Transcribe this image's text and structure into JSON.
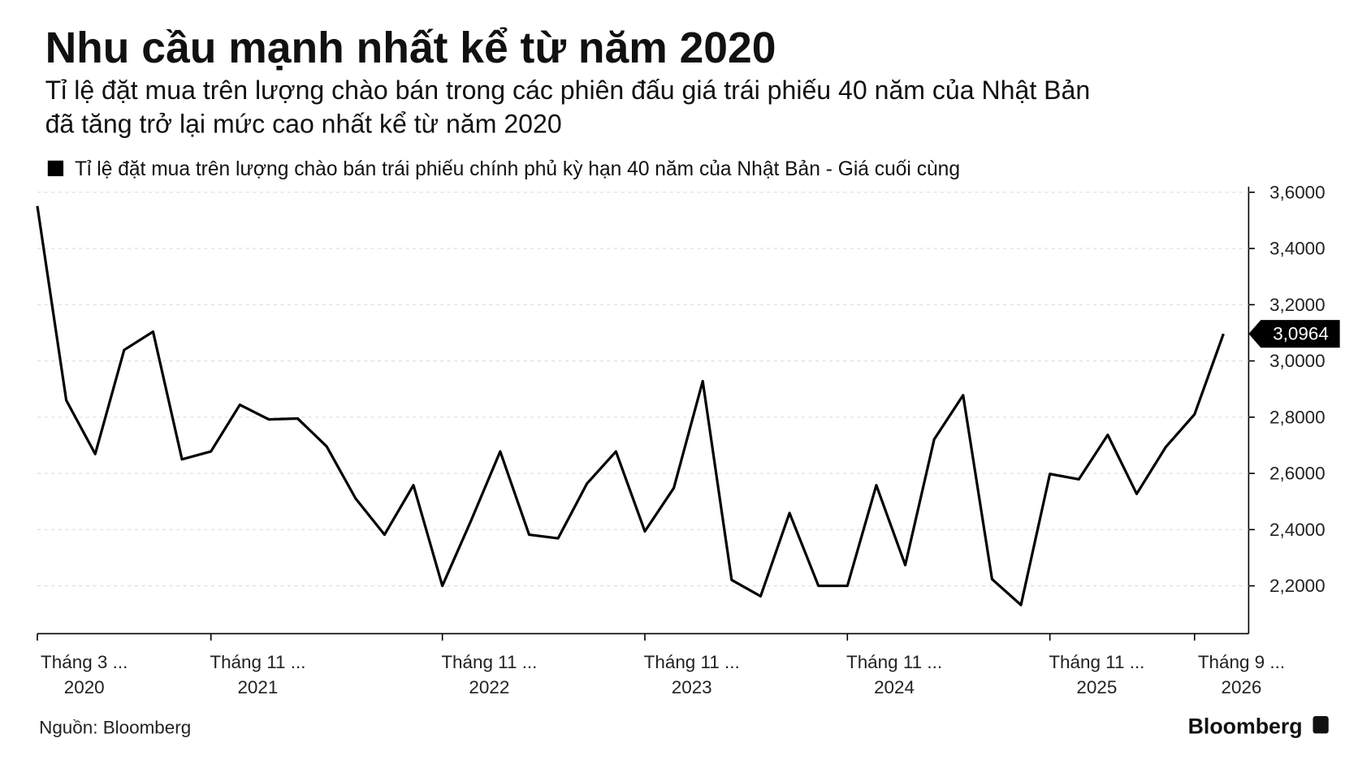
{
  "chart_data": {
    "type": "line",
    "title": "Nhu cầu mạnh nhất kể từ năm 2020",
    "subtitle": [
      "Tỉ lệ đặt mua trên lượng chào bán trong các phiên đấu giá trái phiếu 40 năm của Nhật Bản",
      "đã tăng trở lại mức cao nhất kể từ năm 2020"
    ],
    "source": "Nguồn: Bloomberg",
    "brand": "Bloomberg",
    "categories": [
      [
        "Tháng 3 ...",
        "2020"
      ],
      null,
      null,
      null,
      null,
      null,
      [
        "Tháng 11 ...",
        "2021"
      ],
      null,
      null,
      null,
      null,
      null,
      null,
      null,
      [
        "Tháng 11 ...",
        "2022"
      ],
      null,
      null,
      null,
      null,
      null,
      null,
      [
        "Tháng 11 ...",
        "2023"
      ],
      null,
      null,
      null,
      null,
      null,
      null,
      [
        "Tháng 11 ...",
        "2024"
      ],
      null,
      null,
      null,
      null,
      null,
      null,
      [
        "Tháng 11 ...",
        "2025"
      ],
      null,
      null,
      null,
      null,
      [
        "Tháng 9 ...",
        "2026"
      ],
      null
    ],
    "series": [
      {
        "name": "Tỉ lệ đặt mua trên lượng chào bán trái phiếu chính phủ kỳ hạn 40 năm của Nhật Bản - Giá cuối cùng",
        "color": "#000000",
        "values": [
          3.551,
          2.86,
          2.669,
          3.039,
          3.104,
          2.65,
          2.678,
          2.844,
          2.792,
          2.795,
          2.696,
          2.511,
          2.382,
          2.558,
          2.2,
          2.434,
          2.678,
          2.382,
          2.369,
          2.564,
          2.678,
          2.394,
          2.548,
          2.928,
          2.221,
          2.163,
          2.459,
          2.2,
          2.2,
          2.558,
          2.274,
          2.721,
          2.878,
          2.224,
          2.132,
          2.598,
          2.579,
          2.737,
          2.527,
          2.693,
          2.81,
          3.0964
        ],
        "value_labels": [
          null,
          null,
          null,
          null,
          null,
          null,
          null,
          null,
          null,
          null,
          null,
          null,
          null,
          null,
          null,
          null,
          null,
          null,
          null,
          null,
          null,
          null,
          null,
          null,
          null,
          null,
          null,
          null,
          null,
          null,
          null,
          null,
          null,
          null,
          null,
          null,
          null,
          null,
          null,
          null,
          null,
          "3,0964"
        ]
      }
    ],
    "ylim": [
      2.03,
      3.62
    ],
    "yticks": [
      {
        "value": 2.2,
        "label": "2,2000"
      },
      {
        "value": 2.4,
        "label": "2,4000"
      },
      {
        "value": 2.6,
        "label": "2,6000"
      },
      {
        "value": 2.8,
        "label": "2,8000"
      },
      {
        "value": 3.0,
        "label": "3,0000"
      },
      {
        "value": 3.2,
        "label": "3,2000"
      },
      {
        "value": 3.4,
        "label": "3,4000"
      },
      {
        "value": 3.6,
        "label": "3,6000"
      }
    ],
    "grid": true,
    "y_axis_side": "right"
  }
}
